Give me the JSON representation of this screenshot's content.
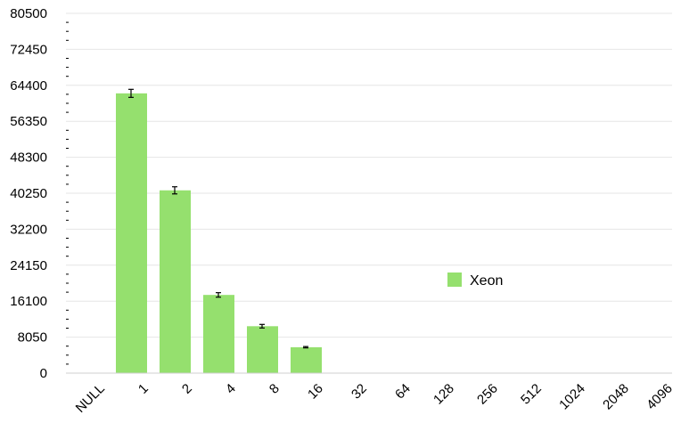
{
  "chart_data": {
    "type": "bar",
    "categories": [
      "NULL",
      "1",
      "2",
      "4",
      "8",
      "16",
      "32",
      "64",
      "128",
      "256",
      "512",
      "1024",
      "2048",
      "4096"
    ],
    "series": [
      {
        "name": "Xeon",
        "color": "#95e06e",
        "values": [
          0,
          62600,
          40900,
          17500,
          10500,
          5800,
          0,
          0,
          0,
          0,
          0,
          0,
          0,
          0
        ],
        "error": [
          0,
          900,
          800,
          500,
          400,
          150,
          0,
          0,
          0,
          0,
          0,
          0,
          0,
          0
        ]
      }
    ],
    "yticks": [
      0,
      8050,
      16100,
      24150,
      32200,
      40250,
      48300,
      56350,
      64400,
      72450,
      80500
    ],
    "ylim": [
      0,
      80500
    ],
    "grid": true,
    "legend": "right-center",
    "title": "",
    "xlabel": "",
    "ylabel": ""
  }
}
